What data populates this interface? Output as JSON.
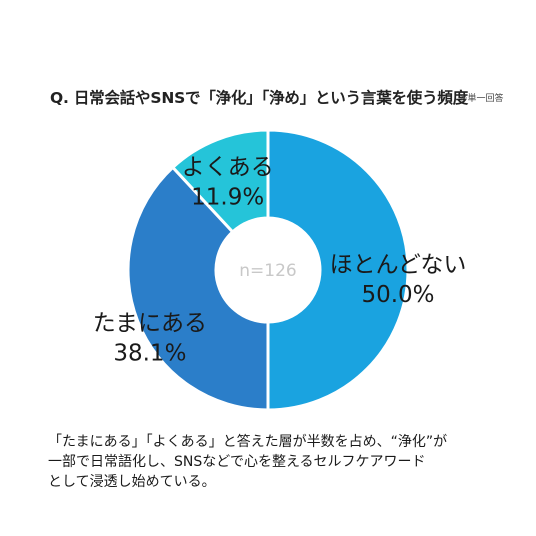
{
  "header": {
    "title": "Q. 日常会話やSNSで「浄化」「浄め」という言葉を使う頻度",
    "note": "※単一回答"
  },
  "chart_data": {
    "type": "pie",
    "donut": true,
    "center_label": "n=126",
    "slices": [
      {
        "label": "ほとんどない",
        "value": 50.0,
        "display": "50.0%",
        "color": "#1aa3e0"
      },
      {
        "label": "たまにある",
        "value": 38.1,
        "display": "38.1%",
        "color": "#2b7ec9"
      },
      {
        "label": "よくある",
        "value": 11.9,
        "display": "11.9%",
        "color": "#25c4d9"
      }
    ],
    "legend": "none"
  },
  "caption": {
    "lines": [
      "「たまにある」「よくある」と答えた層が半数を占め、“浄化”が",
      "一部で日常語化し、SNSなどで心を整えるセルフケアワード",
      "として浸透し始めている。"
    ]
  }
}
